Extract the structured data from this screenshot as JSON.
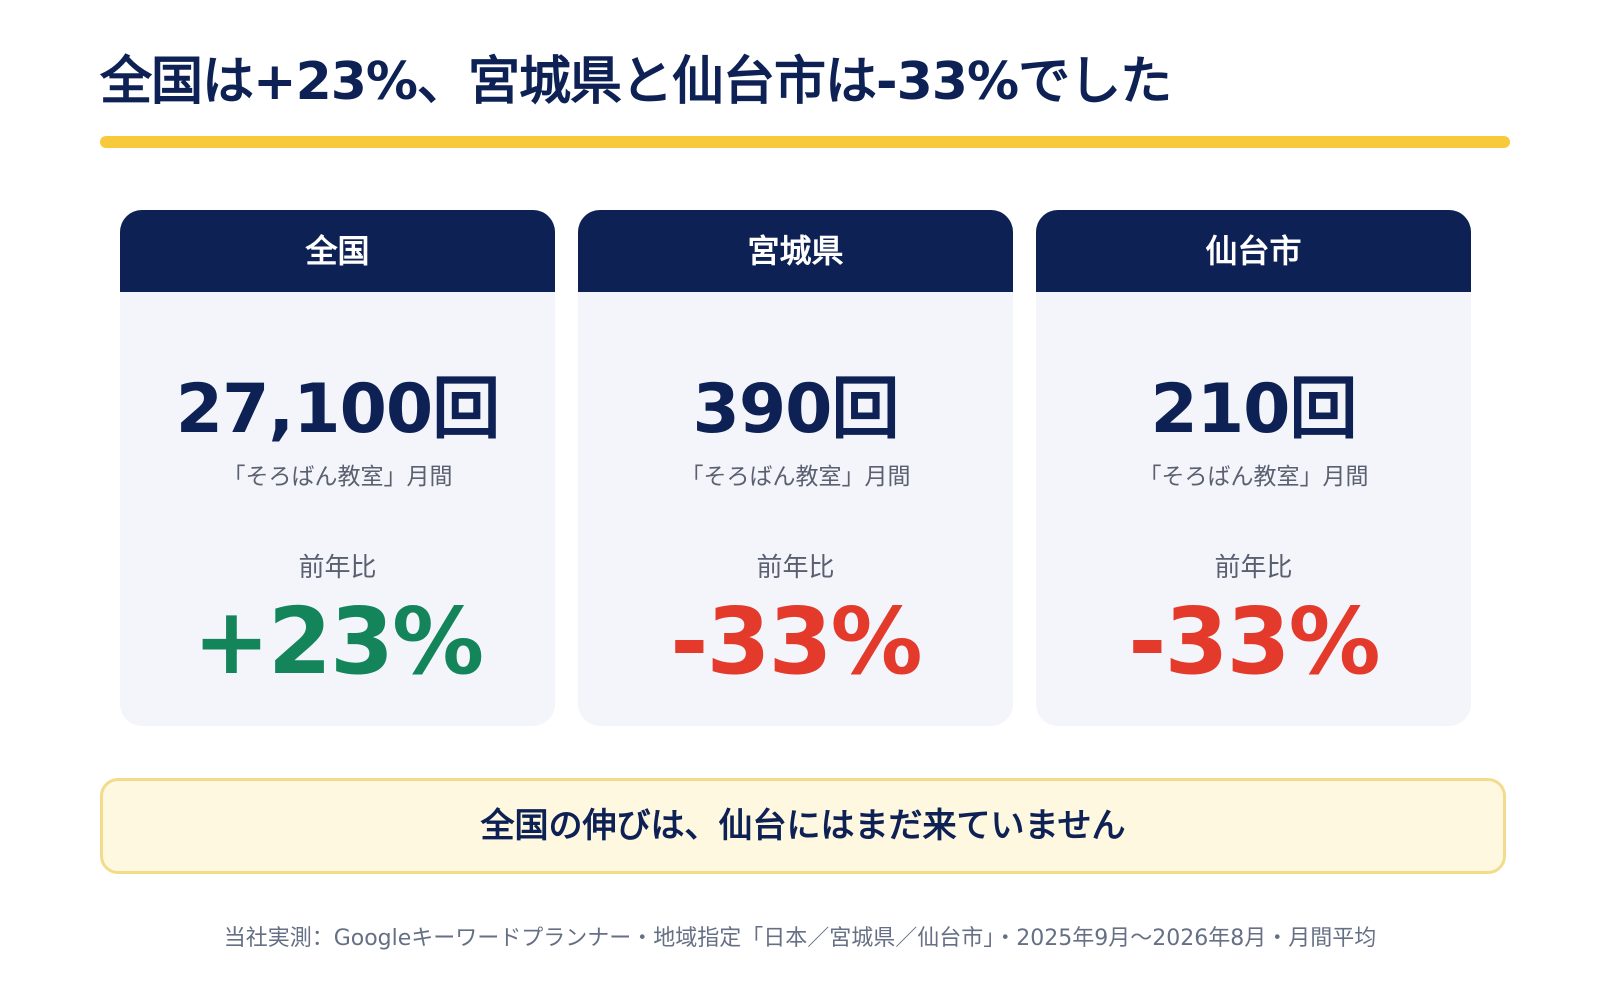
{
  "headline": "全国は+23%、宮城県と仙台市は-33%でした",
  "cards": [
    {
      "title": "全国",
      "value": "27,100回",
      "caption": "「そろばん教室」月間",
      "ratio_label": "前年比",
      "ratio": "+23%",
      "ratio_color": "#14855a"
    },
    {
      "title": "宮城県",
      "value": "390回",
      "caption": "「そろばん教室」月間",
      "ratio_label": "前年比",
      "ratio": "-33%",
      "ratio_color": "#e33a2c"
    },
    {
      "title": "仙台市",
      "value": "210回",
      "caption": "「そろばん教室」月間",
      "ratio_label": "前年比",
      "ratio": "-33%",
      "ratio_color": "#e33a2c"
    }
  ],
  "note": "全国の伸びは、仙台にはまだ来ていません",
  "footer": "当社実測：Googleキーワードプランナー・地域指定「日本／宮城県／仙台市」・2025年9月〜2026年8月・月間平均",
  "colors": {
    "navy": "#0e2154",
    "accent_yellow": "#f8c93b",
    "positive": "#14855a",
    "negative": "#e33a2c",
    "note_bg": "#fff8e0"
  }
}
